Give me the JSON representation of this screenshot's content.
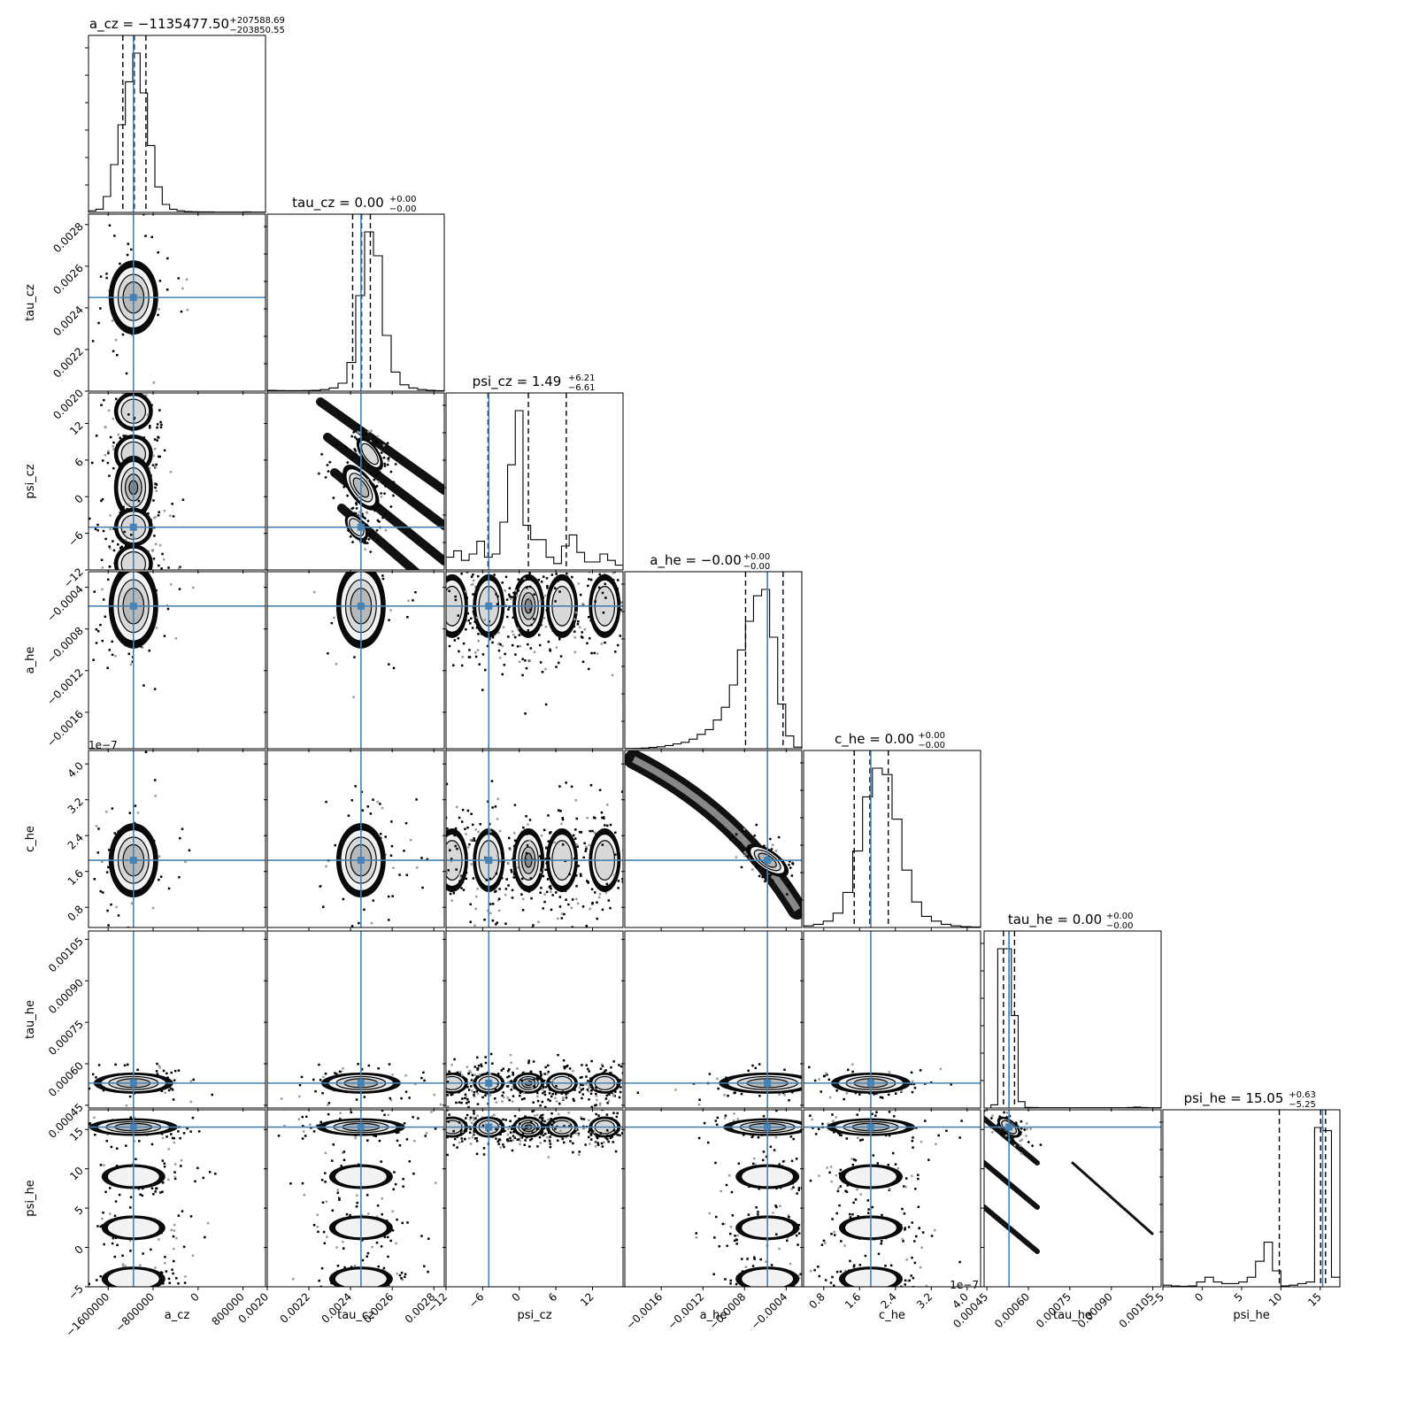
{
  "chart_data": {
    "type": "corner",
    "truth_color": "#4682b4",
    "params": [
      {
        "name": "a_cz",
        "xlabel": "a_cz",
        "title_main": "a_cz = −1135477.50",
        "title_sup": "+207588.69",
        "title_sub": "−203850.55",
        "range": [
          -1950000,
          1200000
        ],
        "ticks": [
          -1600000,
          -800000,
          0,
          800000
        ],
        "ticklabels": [
          "−1600000",
          "−800000",
          "0",
          "800000"
        ],
        "truth": -1150000,
        "quantiles": [
          -1339000,
          -1135000,
          -928000
        ],
        "hist": [
          0.01,
          0.02,
          0.1,
          0.3,
          0.55,
          0.82,
          1.0,
          0.75,
          0.42,
          0.16,
          0.05,
          0.02,
          0.01,
          0.005,
          0.004,
          0.003,
          0.003,
          0.002,
          0.002,
          0.002,
          0.002,
          0.003,
          0.002,
          0.002
        ]
      },
      {
        "name": "tau_cz",
        "xlabel": "tau_cz",
        "title_main": "tau_cz = 0.00",
        "title_sup": "+0.00",
        "title_sub": "−0.00",
        "range": [
          0.002,
          0.00285
        ],
        "ticks": [
          0.002,
          0.0022,
          0.0024,
          0.0026,
          0.0028
        ],
        "ticklabels": [
          "0.0020",
          "0.0022",
          "0.0024",
          "0.0026",
          "0.0028"
        ],
        "truth": 0.00245,
        "quantiles": [
          0.00241,
          0.002453,
          0.002495
        ],
        "hist": [
          0.005,
          0.004,
          0.003,
          0.003,
          0.004,
          0.005,
          0.01,
          0.02,
          0.05,
          0.18,
          0.6,
          1.0,
          0.85,
          0.35,
          0.12,
          0.04,
          0.02,
          0.01,
          0.005,
          0.003
        ]
      },
      {
        "name": "psi_cz",
        "xlabel": "psi_cz",
        "title_main": "psi_cz = 1.49",
        "title_sup": "+6.21",
        "title_sub": "−6.61",
        "range": [
          -12,
          17
        ],
        "ticks": [
          -12,
          -6,
          0,
          6,
          12
        ],
        "ticklabels": [
          "−12",
          "−6",
          "0",
          "6",
          "12"
        ],
        "truth": -5,
        "quantiles": [
          -5.12,
          1.49,
          7.7
        ],
        "hist": [
          0.08,
          0.12,
          0.06,
          0.1,
          0.18,
          0.08,
          0.1,
          0.3,
          0.66,
          1.0,
          0.28,
          0.19,
          0.19,
          0.08,
          0.04,
          0.15,
          0.22,
          0.11,
          0.05,
          0.05,
          0.1,
          0.06,
          0.03
        ]
      },
      {
        "name": "a_he",
        "xlabel": "a_he",
        "title_main": "a_he = −0.00",
        "title_sup": "+0.00",
        "title_sub": "−0.00",
        "range": [
          -0.00195,
          -0.00025
        ],
        "ticks": [
          -0.0016,
          -0.0012,
          -0.0008,
          -0.0004
        ],
        "ticklabels": [
          "−0.0016",
          "−0.0012",
          "−0.0008",
          "−0.0004"
        ],
        "truth": -0.00058,
        "quantiles": [
          -0.00079,
          -0.00058,
          -0.00043
        ],
        "hist": [
          0.001,
          0.002,
          0.004,
          0.008,
          0.012,
          0.02,
          0.03,
          0.04,
          0.06,
          0.09,
          0.12,
          0.18,
          0.26,
          0.4,
          0.62,
          0.8,
          0.96,
          1.0,
          0.7,
          0.28,
          0.08,
          0.01
        ]
      },
      {
        "name": "c_he",
        "xlabel": "c_he",
        "title_main": "c_he = 0.00",
        "title_sup": "+0.00",
        "title_sub": "−0.00",
        "range": [
          0.35,
          4.3
        ],
        "ticks": [
          0.8,
          1.6,
          2.4,
          3.2,
          4.0
        ],
        "ticklabels": [
          "0.8",
          "1.6",
          "2.4",
          "3.2",
          "4.0"
        ],
        "offset_label": "1e−7",
        "truth": 1.85,
        "quantiles": [
          1.48,
          1.83,
          2.24
        ],
        "hist": [
          0.01,
          0.02,
          0.04,
          0.09,
          0.22,
          0.48,
          0.82,
          1.0,
          0.96,
          0.68,
          0.36,
          0.16,
          0.07,
          0.04,
          0.02,
          0.01,
          0.005,
          0.003
        ]
      },
      {
        "name": "tau_he",
        "xlabel": "tau_he",
        "title_main": "tau_he = 0.00",
        "title_sup": "+0.00",
        "title_sub": "−0.00",
        "range": [
          0.00044,
          0.00108
        ],
        "ticks": [
          0.00045,
          0.0006,
          0.00075,
          0.0009,
          0.00105
        ],
        "ticklabels": [
          "0.00045",
          "0.00060",
          "0.00075",
          "0.00090",
          "0.00105"
        ],
        "truth": 0.00053,
        "quantiles": [
          0.00051,
          0.00053,
          0.00055
        ],
        "hist": [
          0.0,
          0.02,
          1.0,
          1.0,
          0.58,
          0.04,
          0.004,
          0.003,
          0.002,
          0.002,
          0.002,
          0.002,
          0.002,
          0.002,
          0.002,
          0.002,
          0.002,
          0.002,
          0.002,
          0.002,
          0.002,
          0.003,
          0.006,
          0.003,
          0.002,
          0.002
        ]
      },
      {
        "name": "psi_he",
        "xlabel": "psi_he",
        "title_main": "psi_he = 15.05",
        "title_sup": "+0.63",
        "title_sub": "−5.25",
        "range": [
          -5,
          17.5
        ],
        "ticks": [
          -5,
          0,
          5,
          10,
          15
        ],
        "ticklabels": [
          "−5",
          "0",
          "5",
          "10",
          "15"
        ],
        "truth": 15.3,
        "quantiles": [
          9.8,
          15.05,
          15.68
        ],
        "hist": [
          0.01,
          0.005,
          0.003,
          0.005,
          0.03,
          0.06,
          0.03,
          0.02,
          0.02,
          0.03,
          0.06,
          0.16,
          0.28,
          0.1,
          0.005,
          0.01,
          0.02,
          0.03,
          1.0,
          0.98,
          0.06
        ]
      }
    ]
  }
}
